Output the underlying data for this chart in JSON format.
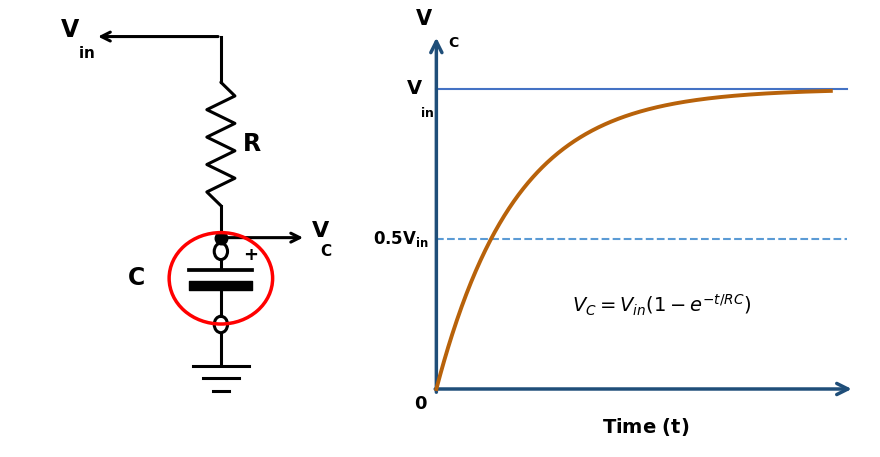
{
  "bg_color": "#ffffff",
  "circuit_color": "#000000",
  "curve_color": "#b8620a",
  "axis_color": "#1f4e79",
  "vin_line_color": "#4472c4",
  "half_vin_line_color": "#5b9bd5",
  "ellipse_color": "#cc0000",
  "lw": 2.2,
  "axis_lw": 2.5,
  "curve_lw": 2.8
}
